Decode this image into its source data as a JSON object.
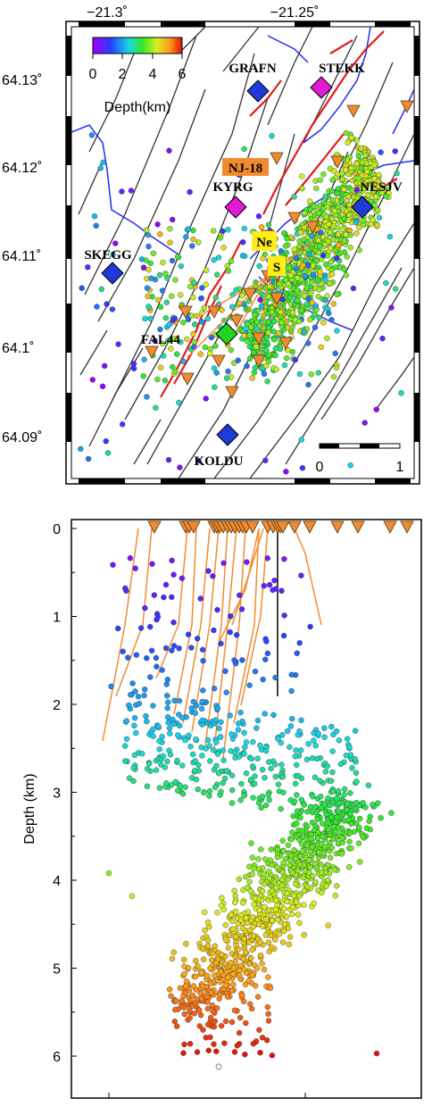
{
  "map": {
    "lon_ticks": [
      "−21.3˚",
      "−21.25˚"
    ],
    "lat_ticks": [
      "64.13˚",
      "64.12˚",
      "64.11˚",
      "64.1˚",
      "64.09˚"
    ],
    "colorbar": {
      "ticks": [
        "0",
        "2",
        "4",
        "6"
      ],
      "label": "Depth(km)"
    },
    "scalebar_ticks": [
      "0",
      "1"
    ],
    "stations": [
      {
        "name": "GRAFN",
        "color": "#1f3ad6"
      },
      {
        "name": "STEKK",
        "color": "#e01ad6"
      },
      {
        "name": "KYRG",
        "color": "#e01ad6"
      },
      {
        "name": "NESJV",
        "color": "#1f3ad6"
      },
      {
        "name": "SKEGG",
        "color": "#1f3ad6"
      },
      {
        "name": "FAL44",
        "color": "#21d421"
      },
      {
        "name": "KOLDU",
        "color": "#1f3ad6"
      }
    ],
    "well_labels": [
      {
        "text": "NJ-18",
        "bg": "#f28b30"
      },
      {
        "text": "Ne",
        "bg": "#ffec1a"
      },
      {
        "text": "S",
        "bg": "#ffec1a"
      }
    ]
  },
  "section": {
    "ylabel": "Depth (km)",
    "depth_ticks": [
      "0",
      "1",
      "2",
      "3",
      "4",
      "5",
      "6"
    ],
    "ylim": [
      0,
      6.5
    ]
  },
  "colors": {
    "fault_lines": "#333333",
    "rivers": "#1e2ff0",
    "fissures": "#e01b1b",
    "wells": "#f28b30",
    "triangle_stroke": "#5a3a10"
  }
}
